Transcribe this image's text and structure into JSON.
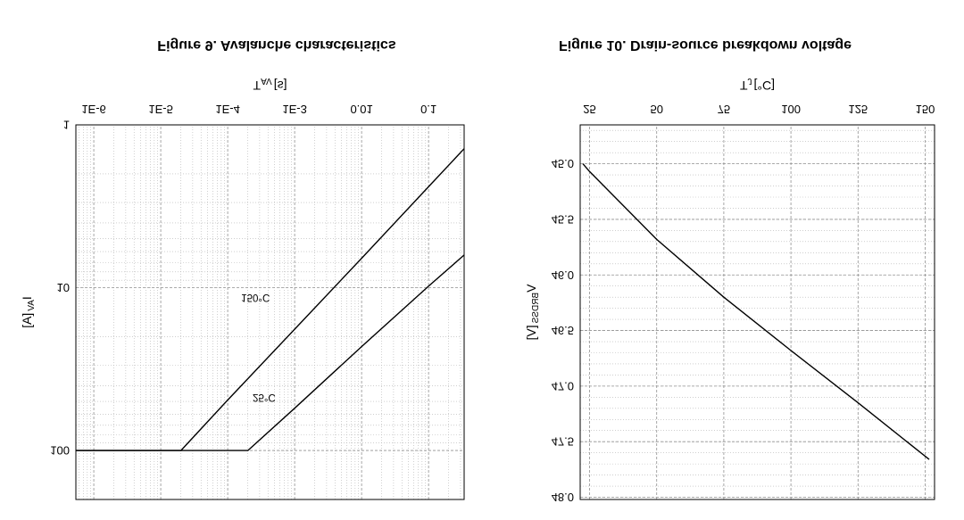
{
  "page": {
    "background": "#ffffff"
  },
  "colors": {
    "curve": "#000000",
    "grid_major": "#909090",
    "grid_minor": "#b2b2b2",
    "box": "#000000"
  },
  "chart_data": [
    {
      "type": "line",
      "caption": "Figure 9. Avalanche characteristics",
      "x_axis": {
        "label_parts": {
          "main": "T",
          "sub": "AV",
          "unit": "[s]"
        },
        "scale": "log",
        "range": [
          5.4e-07,
          0.34
        ],
        "ticks": [
          1e-06,
          1e-05,
          0.0001,
          0.001,
          0.01,
          0.1
        ],
        "tick_labels": [
          "1E-6",
          "1E-5",
          "1E-4",
          "1E-3",
          "0.01",
          "0.1"
        ]
      },
      "y_axis": {
        "label_parts": {
          "main": "I",
          "sub": "AV",
          "unit": "[A]"
        },
        "scale": "log",
        "range": [
          1,
          200
        ],
        "ticks": [
          1,
          10,
          100
        ],
        "tick_labels": [
          "1",
          "10",
          "100"
        ]
      },
      "grid": {
        "major": true,
        "minor": true
      },
      "series": [
        {
          "name": "150°C",
          "label_pos": [
            0.00026,
            11
          ],
          "points": [
            [
              5.4e-07,
              100
            ],
            [
              2e-05,
              100
            ],
            [
              0.0001,
              49
            ],
            [
              0.001,
              18
            ],
            [
              0.01,
              6.6
            ],
            [
              0.1,
              2.4
            ],
            [
              0.34,
              1.4
            ]
          ]
        },
        {
          "name": "25°C",
          "label_pos": [
            0.00035,
            45
          ],
          "points": [
            [
              5.4e-07,
              100
            ],
            [
              0.0002,
              100
            ],
            [
              0.001,
              55
            ],
            [
              0.01,
              23
            ],
            [
              0.1,
              9.8
            ],
            [
              0.34,
              6.3
            ]
          ]
        }
      ]
    },
    {
      "type": "line",
      "caption": "Figure 10. Drain-source breakdown voltage",
      "x_axis": {
        "label_parts": {
          "main": "T",
          "sub": "J",
          "unit": "[°C]"
        },
        "scale": "linear",
        "range": [
          21.5,
          153.5
        ],
        "ticks": [
          25,
          50,
          75,
          100,
          125,
          150
        ],
        "tick_labels": [
          "25",
          "50",
          "75",
          "100",
          "125",
          "150"
        ]
      },
      "y_axis": {
        "label_parts": {
          "main": "V",
          "sub": "BRDSS",
          "unit": "[V]"
        },
        "scale": "linear",
        "range": [
          44.65,
          48.02
        ],
        "minor_step": 0.1,
        "ticks": [
          45.0,
          45.5,
          46.0,
          46.5,
          47.0,
          47.5,
          48.0
        ],
        "tick_labels": [
          "45.0",
          "45.5",
          "46.0",
          "46.5",
          "47.0",
          "47.5",
          "48.0"
        ]
      },
      "grid": {
        "major": true,
        "minor": true
      },
      "series": [
        {
          "name": "",
          "points": [
            [
              22.5,
              45.0
            ],
            [
              25,
              45.07
            ],
            [
              50,
              45.68
            ],
            [
              75,
              46.2
            ],
            [
              100,
              46.68
            ],
            [
              125,
              47.15
            ],
            [
              151.5,
              47.66
            ]
          ]
        }
      ]
    }
  ]
}
